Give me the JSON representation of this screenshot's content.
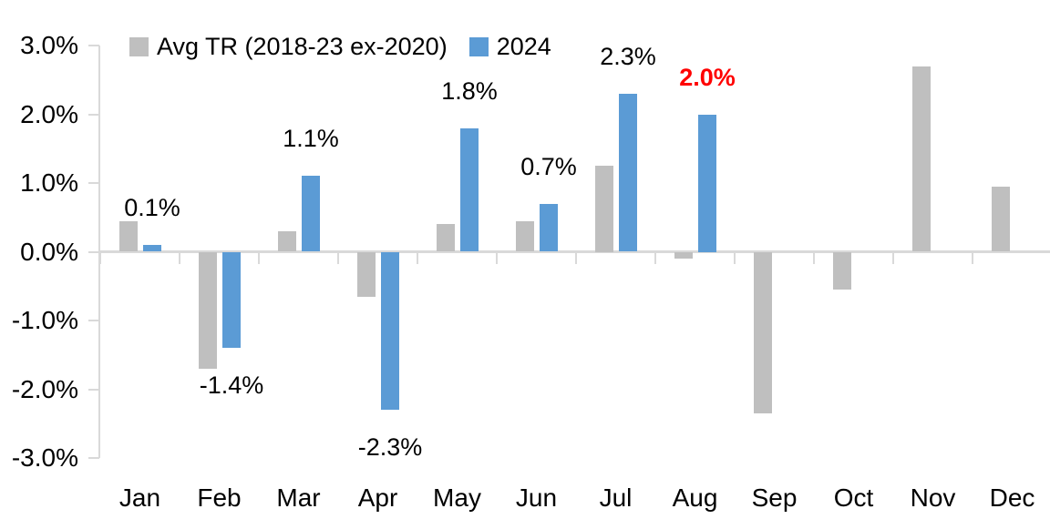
{
  "chart_data": {
    "type": "bar",
    "title": "",
    "xlabel": "",
    "ylabel": "",
    "categories": [
      "Jan",
      "Feb",
      "Mar",
      "Apr",
      "May",
      "Jun",
      "Jul",
      "Aug",
      "Sep",
      "Oct",
      "Nov",
      "Dec"
    ],
    "y_ticks": [
      {
        "label": "3.0%",
        "value": 3
      },
      {
        "label": "2.0%",
        "value": 2
      },
      {
        "label": "1.0%",
        "value": 1
      },
      {
        "label": "0.0%",
        "value": 0
      },
      {
        "label": "-1.0%",
        "value": -1
      },
      {
        "label": "-2.0%",
        "value": -2
      },
      {
        "label": "-3.0%",
        "value": -3
      }
    ],
    "ylim": [
      -3,
      3
    ],
    "grid": "off",
    "legend_position": "top-left",
    "series": [
      {
        "name": "Avg TR (2018-23 ex-2020)",
        "color": "#BFBFBF",
        "values": [
          0.45,
          -1.7,
          0.3,
          -0.65,
          0.4,
          0.45,
          1.25,
          -0.1,
          -2.35,
          -0.55,
          2.7,
          0.95
        ]
      },
      {
        "name": "2024",
        "color": "#5B9BD5",
        "values": [
          0.1,
          -1.4,
          1.1,
          -2.3,
          1.8,
          0.7,
          2.3,
          2.0
        ],
        "data_labels": [
          {
            "text": "0.1%",
            "color": "#000000",
            "bold": false
          },
          {
            "text": "-1.4%",
            "color": "#000000",
            "bold": false
          },
          {
            "text": "1.1%",
            "color": "#000000",
            "bold": false
          },
          {
            "text": "-2.3%",
            "color": "#000000",
            "bold": false
          },
          {
            "text": "1.8%",
            "color": "#000000",
            "bold": false
          },
          {
            "text": "0.7%",
            "color": "#000000",
            "bold": false
          },
          {
            "text": "2.3%",
            "color": "#000000",
            "bold": false
          },
          {
            "text": "2.0%",
            "color": "#FF0000",
            "bold": true
          }
        ]
      }
    ]
  },
  "colors": {
    "background": "#FFFFFF",
    "axis_line": "#D9D9D9",
    "text": "#000000",
    "highlight": "#FF0000",
    "series_avg": "#BFBFBF",
    "series_2024": "#5B9BD5"
  }
}
